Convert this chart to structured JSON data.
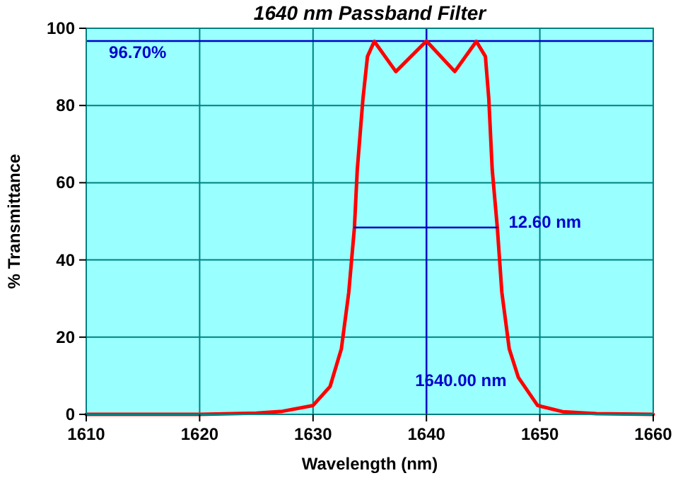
{
  "chart_data": {
    "type": "line",
    "title": "1640 nm Passband Filter",
    "xlabel": "Wavelength (nm)",
    "ylabel": "% Transmittance",
    "xlim": [
      1610,
      1660
    ],
    "xticks": [
      1610,
      1620,
      1630,
      1640,
      1650,
      1660
    ],
    "ylim": [
      0,
      100
    ],
    "yticks": [
      0,
      20,
      40,
      60,
      80,
      100
    ],
    "grid": true,
    "series": [
      {
        "color": "#ff0000",
        "x": [
          1610,
          1620,
          1625,
          1627.3,
          1630,
          1631.5,
          1632.5,
          1633.15,
          1633.65,
          1633.9,
          1634.4,
          1634.8,
          1635.4,
          1637.3,
          1640,
          1642.5,
          1644.4,
          1645.2,
          1645.5,
          1645.8,
          1646.25,
          1646.65,
          1647.3,
          1648.1,
          1649.8,
          1652,
          1655,
          1660
        ],
        "values": [
          0,
          0,
          0.3,
          0.8,
          2.3,
          7.2,
          17,
          31.6,
          48.4,
          63.4,
          81.7,
          92.7,
          96.6,
          88.8,
          96.7,
          88.8,
          96.6,
          92.7,
          81.7,
          63.4,
          48.4,
          31.6,
          17,
          9.6,
          2.3,
          0.7,
          0.2,
          0
        ]
      },
      {
        "color": "#0000cc",
        "x": [
          1633.65,
          1646.25
        ],
        "values": [
          48.4,
          48.4
        ]
      }
    ],
    "ref_lines": [
      {
        "axis": "y",
        "value": 96.7,
        "color": "#0000cc"
      },
      {
        "axis": "x",
        "value": 1640,
        "color": "#0000cc"
      }
    ],
    "annotations": [
      {
        "text": "96.70%",
        "x": 1612,
        "y": 96.7
      },
      {
        "text": "12.60 nm",
        "x": 1646.25,
        "y": 48.4
      },
      {
        "text": "1640.00 nm",
        "x": 1640,
        "y": 0
      }
    ]
  }
}
